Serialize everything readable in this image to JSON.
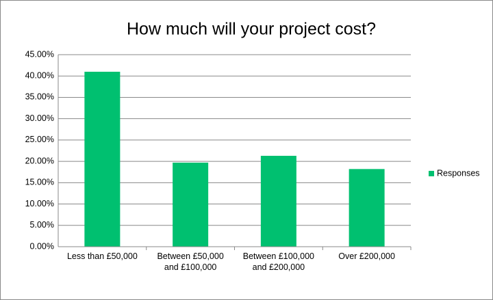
{
  "chart_data": {
    "type": "bar",
    "title": "How much will your project cost?",
    "categories": [
      "Less than £50,000",
      "Between £50,000 and £100,000",
      "Between £100,000 and £200,000",
      "Over £200,000"
    ],
    "series": [
      {
        "name": "Responses",
        "color": "#00c070",
        "values": [
          41.0,
          19.7,
          21.3,
          18.2
        ]
      }
    ],
    "ylim": [
      0,
      45
    ],
    "yticks": [
      {
        "value": 0,
        "label": "0.00%"
      },
      {
        "value": 5,
        "label": "5.00%"
      },
      {
        "value": 10,
        "label": "10.00%"
      },
      {
        "value": 15,
        "label": "15.00%"
      },
      {
        "value": 20,
        "label": "20.00%"
      },
      {
        "value": 25,
        "label": "25.00%"
      },
      {
        "value": 30,
        "label": "30.00%"
      },
      {
        "value": 35,
        "label": "35.00%"
      },
      {
        "value": 40,
        "label": "40.00%"
      },
      {
        "value": 45,
        "label": "45.00%"
      }
    ],
    "grid": true,
    "legend": "right"
  }
}
